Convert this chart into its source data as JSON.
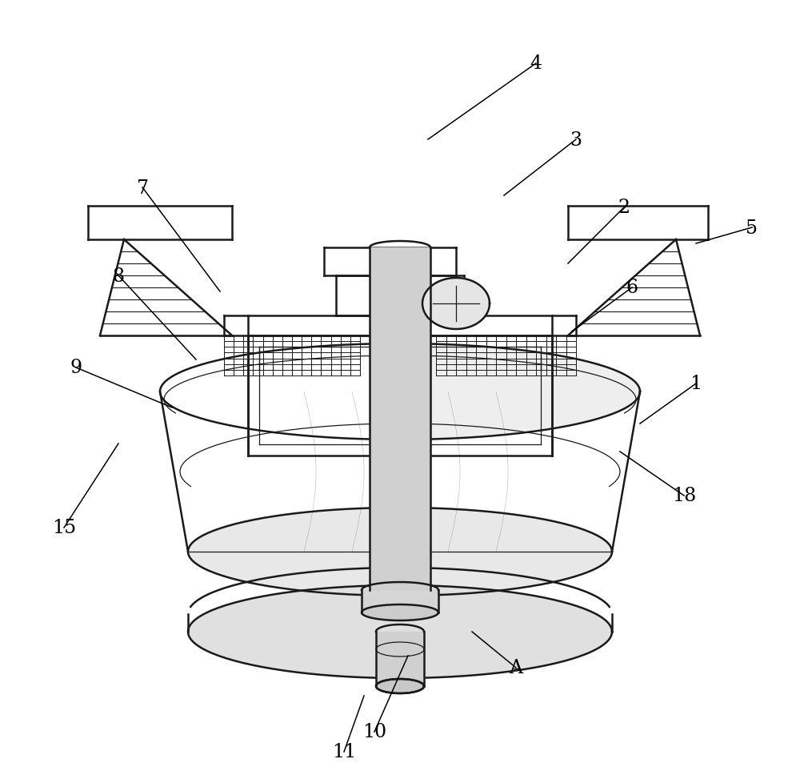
{
  "bg": "#ffffff",
  "lc": "#1a1a1a",
  "lw": 1.8,
  "lw_thin": 0.9,
  "lw_grid": 0.7,
  "figsize": [
    10.0,
    9.79
  ],
  "dpi": 100,
  "font_size": 17,
  "font_size_small": 15
}
